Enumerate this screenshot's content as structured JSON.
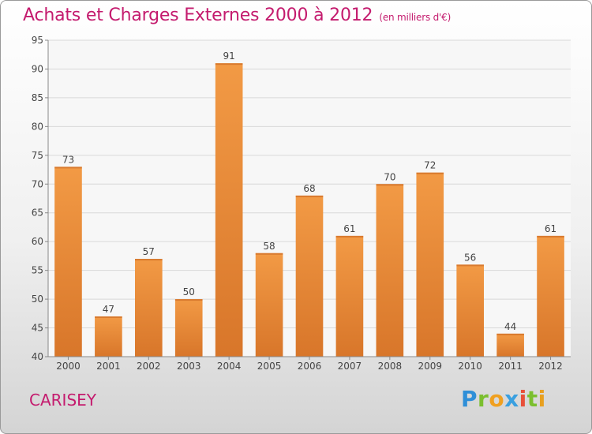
{
  "chart_data": {
    "type": "bar",
    "title": "Achats et Charges Externes 2000 à 2012",
    "subtitle": "(en milliers d'€)",
    "categories": [
      "2000",
      "2001",
      "2002",
      "2003",
      "2004",
      "2005",
      "2006",
      "2007",
      "2008",
      "2009",
      "2010",
      "2011",
      "2012"
    ],
    "values": [
      73,
      47,
      57,
      50,
      91,
      58,
      68,
      61,
      70,
      72,
      56,
      44,
      61
    ],
    "ylim": [
      40,
      95
    ],
    "yticks": [
      40,
      45,
      50,
      55,
      60,
      65,
      70,
      75,
      80,
      85,
      90,
      95
    ],
    "grid": true,
    "bar_color": "#f29a45",
    "bar_color_dark": "#d8762a"
  },
  "place": "CARISEY",
  "logo": {
    "letters": [
      "P",
      "r",
      "o",
      "x",
      "i",
      "t",
      "i"
    ],
    "colors": [
      "#2f8fd8",
      "#7bbf2f",
      "#f0a020",
      "#3aa0e0",
      "#e8503a",
      "#7bbf2f",
      "#e8a020"
    ]
  }
}
